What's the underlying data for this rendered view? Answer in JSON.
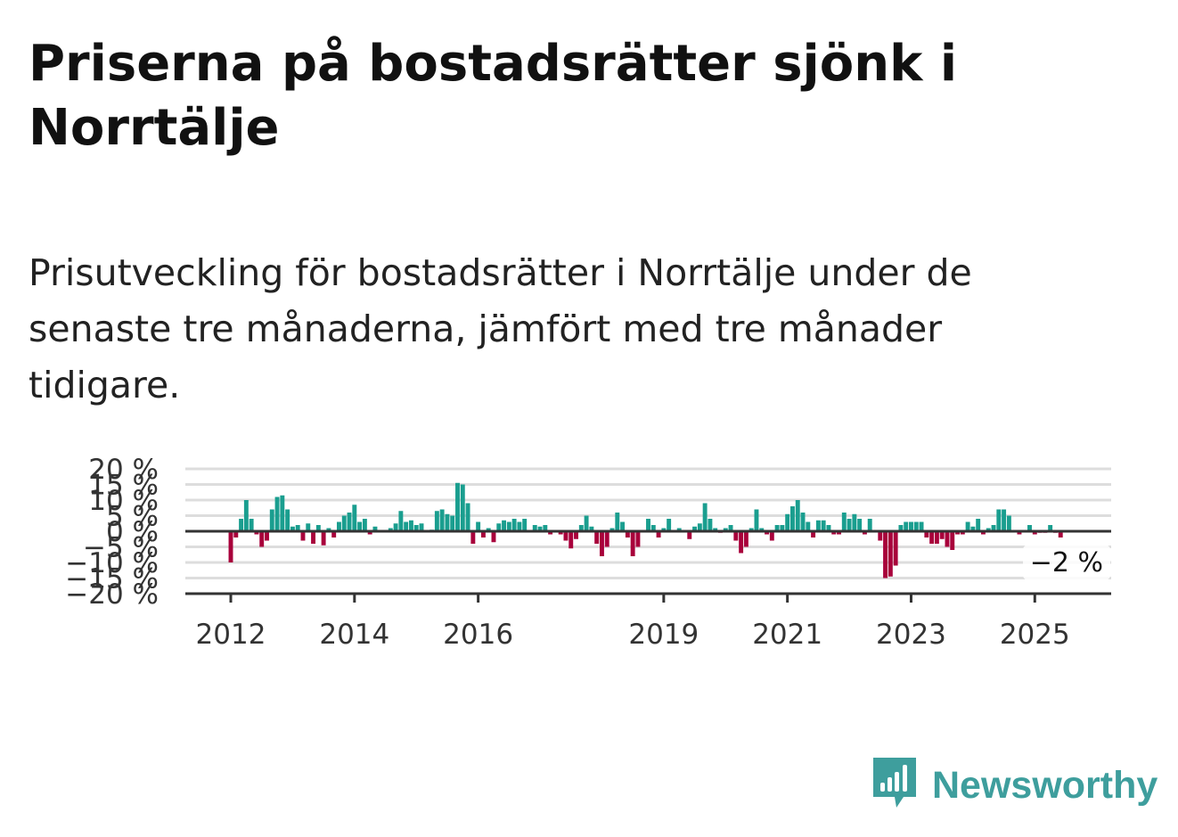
{
  "title": "Priserna på bostadsrätter sjönk i Norrtälje",
  "subtitle": "Prisutveckling för bostadsrätter i Norrtälje under de senaste tre månaderna, jämfört med tre månader tidigare.",
  "brand": {
    "name": "Newsworthy",
    "icon": "newsworthy-logo-icon",
    "color": "#3e9e9d"
  },
  "colors": {
    "positive": "#1a9e8f",
    "negative": "#a8003b",
    "grid": "#dddddd",
    "axis": "#333333"
  },
  "chart_data": {
    "type": "bar",
    "title": "",
    "xlabel": "",
    "ylabel": "",
    "ylim": [
      -20,
      20
    ],
    "y_ticks": [
      {
        "value": 20,
        "label": "20 %"
      },
      {
        "value": 15,
        "label": "15 %"
      },
      {
        "value": 10,
        "label": "10 %"
      },
      {
        "value": 5,
        "label": "5 %"
      },
      {
        "value": 0,
        "label": "0 %"
      },
      {
        "value": -5,
        "label": "−5 %"
      },
      {
        "value": -10,
        "label": "−10 %"
      },
      {
        "value": -15,
        "label": "−15 %"
      },
      {
        "value": -20,
        "label": "−20 %"
      }
    ],
    "x_ticks": [
      "2012",
      "2014",
      "2016",
      "2019",
      "2021",
      "2023",
      "2025"
    ],
    "start": "2012-01",
    "end": "2025-07",
    "grid": true,
    "last_label": "−2 %",
    "values": [
      -10,
      -2,
      4,
      10,
      4,
      -1,
      -5,
      -3,
      7,
      11,
      11.5,
      7,
      1.5,
      2,
      -3,
      2.5,
      -4,
      2,
      -4.5,
      1,
      -2,
      3,
      5,
      6,
      8.5,
      3,
      4,
      -1,
      1.5,
      0,
      0,
      1,
      2.5,
      6.5,
      3,
      3.5,
      2,
      2.5,
      0,
      0.5,
      6.5,
      7,
      5.5,
      5,
      15.5,
      15,
      9,
      -4,
      3,
      -2,
      1,
      -3.5,
      2.5,
      3.5,
      3,
      4,
      3,
      4,
      0,
      2,
      1.5,
      2,
      -1,
      0,
      -1,
      -3,
      -5.5,
      -2.5,
      2,
      5,
      1.5,
      -4,
      -8,
      -5,
      1,
      6,
      3,
      -2,
      -8,
      -5,
      0,
      4,
      2,
      -2,
      1,
      4,
      0,
      1,
      0,
      -2.5,
      1.5,
      2.5,
      9,
      4,
      1,
      -0.5,
      1,
      2,
      -3,
      -7,
      -5,
      1,
      7,
      1,
      -1,
      -3,
      2,
      2,
      5.5,
      8,
      10,
      6,
      3,
      -2,
      3.5,
      3.5,
      2,
      -1,
      -1,
      6,
      4,
      5.5,
      4,
      -1,
      4,
      0,
      -3,
      -15,
      -14.5,
      -11,
      2,
      3,
      3,
      3,
      3,
      -2,
      -4,
      -4,
      -2.5,
      -5,
      -6,
      -1,
      -1,
      3,
      1.5,
      4,
      -1,
      1,
      2,
      7,
      7,
      5,
      0,
      -1,
      0,
      2,
      -1,
      -0.5,
      -0.5,
      2,
      -0.5,
      -2
    ]
  }
}
